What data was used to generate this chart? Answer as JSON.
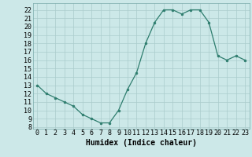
{
  "x": [
    0,
    1,
    2,
    3,
    4,
    5,
    6,
    7,
    8,
    9,
    10,
    11,
    12,
    13,
    14,
    15,
    16,
    17,
    18,
    19,
    20,
    21,
    22,
    23
  ],
  "y": [
    13,
    12,
    11.5,
    11,
    10.5,
    9.5,
    9,
    8.5,
    8.5,
    10,
    12.5,
    14.5,
    18,
    20.5,
    22,
    22,
    21.5,
    22,
    22,
    20.5,
    16.5,
    16,
    16.5,
    16
  ],
  "xlabel": "Humidex (Indice chaleur)",
  "xlim": [
    -0.5,
    23.5
  ],
  "ylim": [
    7.8,
    22.8
  ],
  "yticks": [
    8,
    9,
    10,
    11,
    12,
    13,
    14,
    15,
    16,
    17,
    18,
    19,
    20,
    21,
    22
  ],
  "xticks": [
    0,
    1,
    2,
    3,
    4,
    5,
    6,
    7,
    8,
    9,
    10,
    11,
    12,
    13,
    14,
    15,
    16,
    17,
    18,
    19,
    20,
    21,
    22,
    23
  ],
  "line_color": "#2e7d6e",
  "marker_color": "#2e7d6e",
  "bg_color": "#cce8e8",
  "grid_color": "#aacccc",
  "xlabel_fontsize": 7,
  "tick_fontsize": 6
}
